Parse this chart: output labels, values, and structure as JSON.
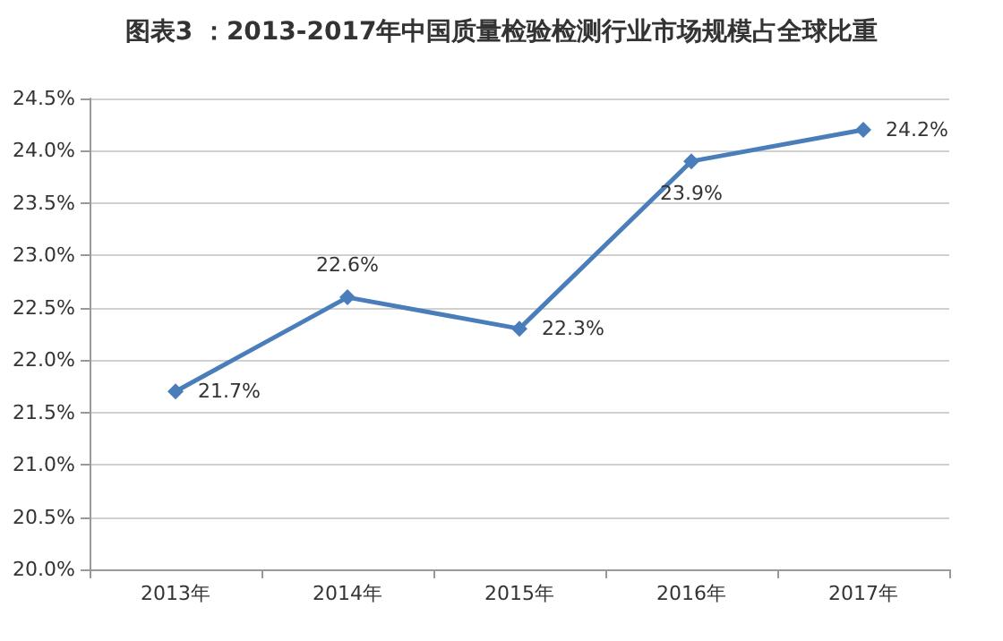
{
  "chart_data": {
    "type": "line",
    "title": "图表3 ：2013-2017年中国质量检验检测行业市场规模占全球比重",
    "categories": [
      "2013年",
      "2014年",
      "2015年",
      "2016年",
      "2017年"
    ],
    "series": [
      {
        "color": "#4a7ebb",
        "values": [
          21.7,
          22.6,
          22.3,
          23.9,
          24.2
        ],
        "value_labels": [
          "21.7%",
          "22.6%",
          "22.3%",
          "23.9%",
          "24.2%"
        ]
      }
    ],
    "ylim": [
      20,
      24.5
    ],
    "yticks": [
      {
        "value": 20,
        "label": "20.0%"
      },
      {
        "value": 20.5,
        "label": "20.5%"
      },
      {
        "value": 21,
        "label": "21.0%"
      },
      {
        "value": 21.5,
        "label": "21.5%"
      },
      {
        "value": 22,
        "label": "22.0%"
      },
      {
        "value": 22.5,
        "label": "22.5%"
      },
      {
        "value": 23,
        "label": "23.0%"
      },
      {
        "value": 23.5,
        "label": "23.5%"
      },
      {
        "value": 24,
        "label": "24.0%"
      },
      {
        "value": 24.5,
        "label": "24.5%"
      }
    ],
    "grid": "y",
    "marker": "diamond",
    "line_style": "solid"
  }
}
